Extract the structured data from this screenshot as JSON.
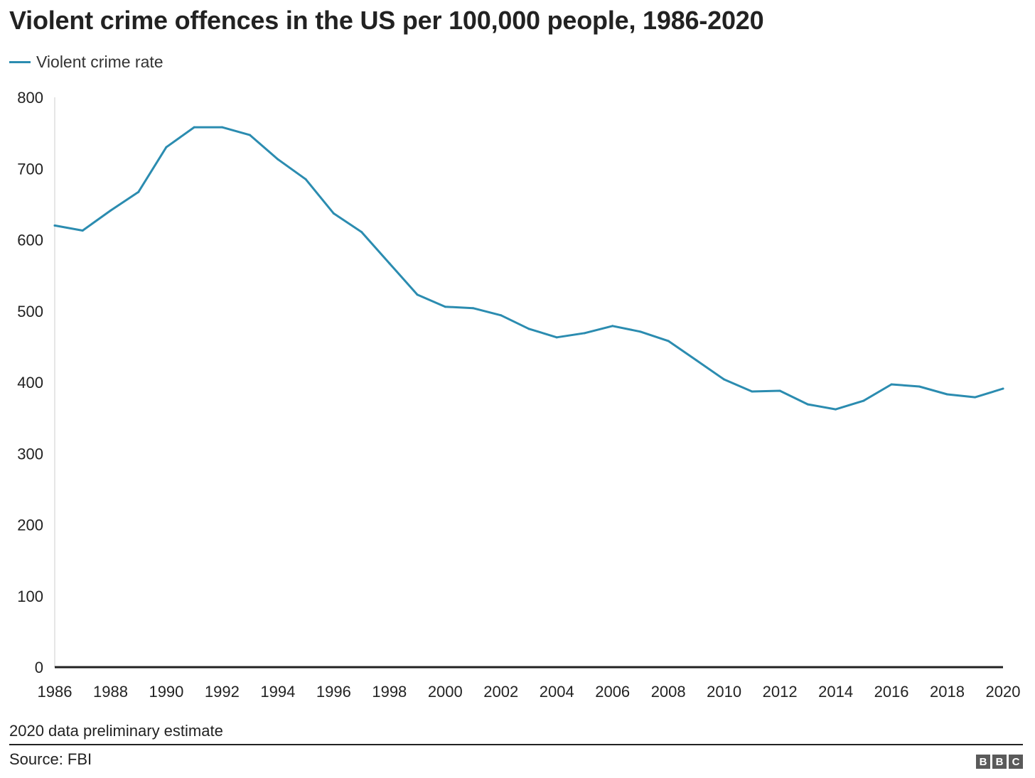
{
  "header": {
    "title": "Violent crime offences in the US per 100,000 people, 1986-2020"
  },
  "legend": {
    "label": "Violent crime rate",
    "color": "#2b8cb0"
  },
  "chart_data": {
    "type": "line",
    "title": "Violent crime offences in the US per 100,000 people, 1986-2020",
    "xlabel": "",
    "ylabel": "",
    "ylim": [
      0,
      800
    ],
    "xlim": [
      1986,
      2020
    ],
    "yticks": [
      0,
      100,
      200,
      300,
      400,
      500,
      600,
      700,
      800
    ],
    "xticks": [
      1986,
      1988,
      1990,
      1992,
      1994,
      1996,
      1998,
      2000,
      2002,
      2004,
      2006,
      2008,
      2010,
      2012,
      2014,
      2016,
      2018,
      2020
    ],
    "grid": false,
    "legend_position": "top-left",
    "x": [
      1986,
      1987,
      1988,
      1989,
      1990,
      1991,
      1992,
      1993,
      1994,
      1995,
      1996,
      1997,
      1998,
      1999,
      2000,
      2001,
      2002,
      2003,
      2004,
      2005,
      2006,
      2007,
      2008,
      2009,
      2010,
      2011,
      2012,
      2013,
      2014,
      2015,
      2016,
      2017,
      2018,
      2019,
      2020
    ],
    "series": [
      {
        "name": "Violent crime rate",
        "color": "#2b8cb0",
        "values": [
          620,
          613,
          641,
          667,
          730,
          758,
          758,
          747,
          713,
          685,
          637,
          611,
          567,
          523,
          506,
          504,
          494,
          475,
          463,
          469,
          479,
          471,
          458,
          431,
          404,
          387,
          388,
          369,
          362,
          374,
          397,
          394,
          383,
          379,
          391
        ]
      }
    ]
  },
  "footer": {
    "note": "2020 data preliminary estimate",
    "source": "Source: FBI",
    "logo_letters": [
      "B",
      "B",
      "C"
    ]
  }
}
